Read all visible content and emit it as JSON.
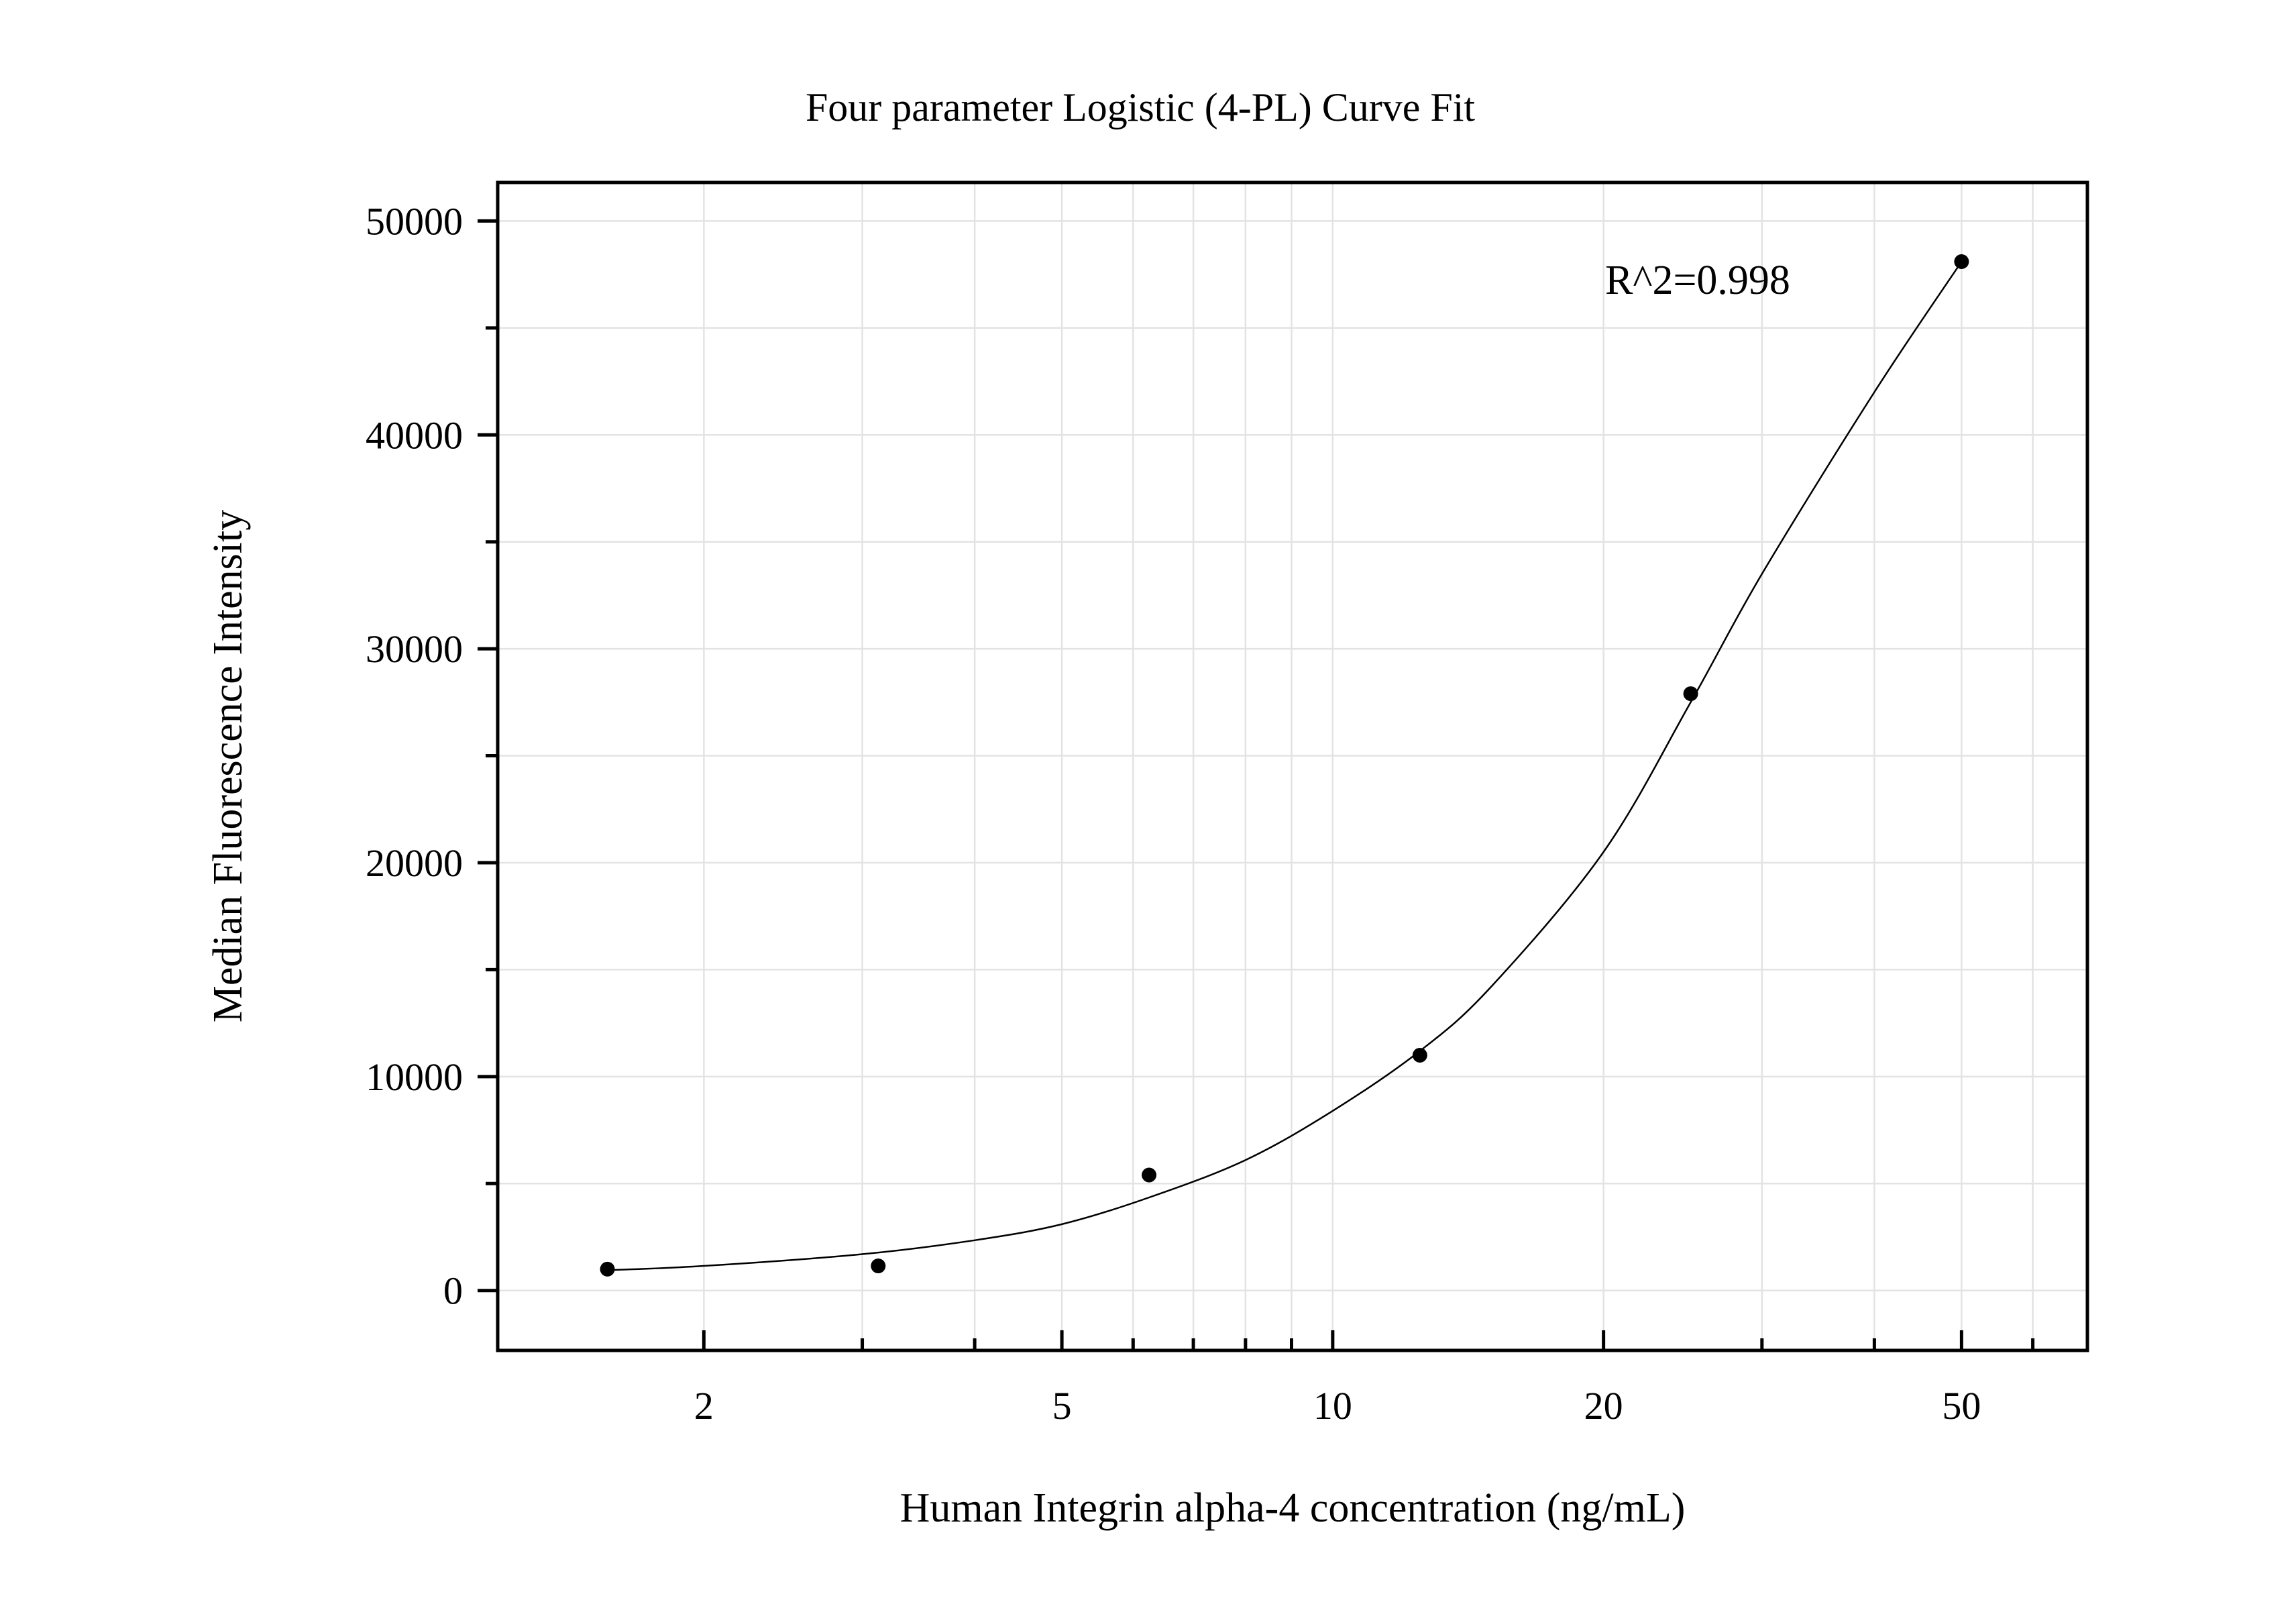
{
  "chart_data": {
    "type": "scatter",
    "title": "Four parameter Logistic (4-PL) Curve Fit",
    "xlabel": "Human Integrin alpha-4 concentration (ng/mL)",
    "ylabel": "Median Fluorescence Intensity",
    "x_scale": "log",
    "xlim": [
      1.18,
      69
    ],
    "ylim": [
      -2800,
      51800
    ],
    "x_ticks": [
      2,
      5,
      10,
      20,
      50
    ],
    "x_tick_labels": [
      "2",
      "5",
      "10",
      "20",
      "50"
    ],
    "y_ticks": [
      0,
      10000,
      20000,
      30000,
      40000,
      50000
    ],
    "y_tick_labels": [
      "0",
      "10000",
      "20000",
      "30000",
      "40000",
      "50000"
    ],
    "grid": true,
    "annotation": "R^2=0.998",
    "series": [
      {
        "points": [
          {
            "x": 1.5625,
            "y": 1000
          },
          {
            "x": 3.125,
            "y": 1150
          },
          {
            "x": 6.25,
            "y": 5400
          },
          {
            "x": 12.5,
            "y": 11000
          },
          {
            "x": 25,
            "y": 27900
          },
          {
            "x": 50,
            "y": 48100
          }
        ]
      }
    ],
    "fit_curve": {
      "model": "4-PL",
      "x": [
        1.5625,
        2,
        3,
        4,
        5,
        6.25,
        8,
        10,
        12.5,
        15,
        20,
        25,
        30,
        40,
        50
      ],
      "y": [
        950,
        1150,
        1700,
        2350,
        3100,
        4350,
        6100,
        8400,
        11200,
        14200,
        20500,
        27500,
        33500,
        42000,
        48100
      ]
    }
  }
}
